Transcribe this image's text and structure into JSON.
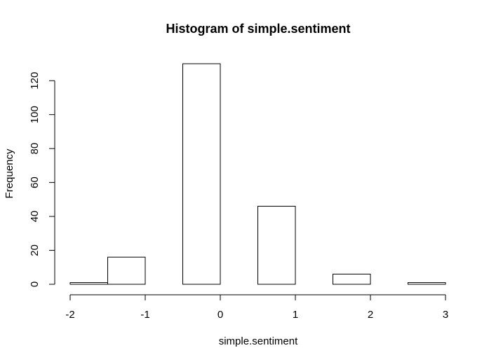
{
  "chart_data": {
    "type": "bar",
    "title": "Histogram of simple.sentiment",
    "xlabel": "simple.sentiment",
    "ylabel": "Frequency",
    "bins": [
      {
        "start": -2.0,
        "end": -1.5,
        "count": 1
      },
      {
        "start": -1.5,
        "end": -1.0,
        "count": 16
      },
      {
        "start": -1.0,
        "end": -0.5,
        "count": 0
      },
      {
        "start": -0.5,
        "end": 0.0,
        "count": 130
      },
      {
        "start": 0.0,
        "end": 0.5,
        "count": 0
      },
      {
        "start": 0.5,
        "end": 1.0,
        "count": 46
      },
      {
        "start": 1.0,
        "end": 1.5,
        "count": 0
      },
      {
        "start": 1.5,
        "end": 2.0,
        "count": 6
      },
      {
        "start": 2.0,
        "end": 2.5,
        "count": 0
      },
      {
        "start": 2.5,
        "end": 3.0,
        "count": 1
      }
    ],
    "xticks": [
      -2,
      -1,
      0,
      1,
      2,
      3
    ],
    "yticks": [
      0,
      20,
      40,
      60,
      80,
      100,
      120
    ],
    "xlim": [
      -2,
      3
    ],
    "ylim": [
      0,
      130
    ],
    "grid": false,
    "bar_fill": "#ffffff",
    "bar_stroke": "#000000"
  }
}
